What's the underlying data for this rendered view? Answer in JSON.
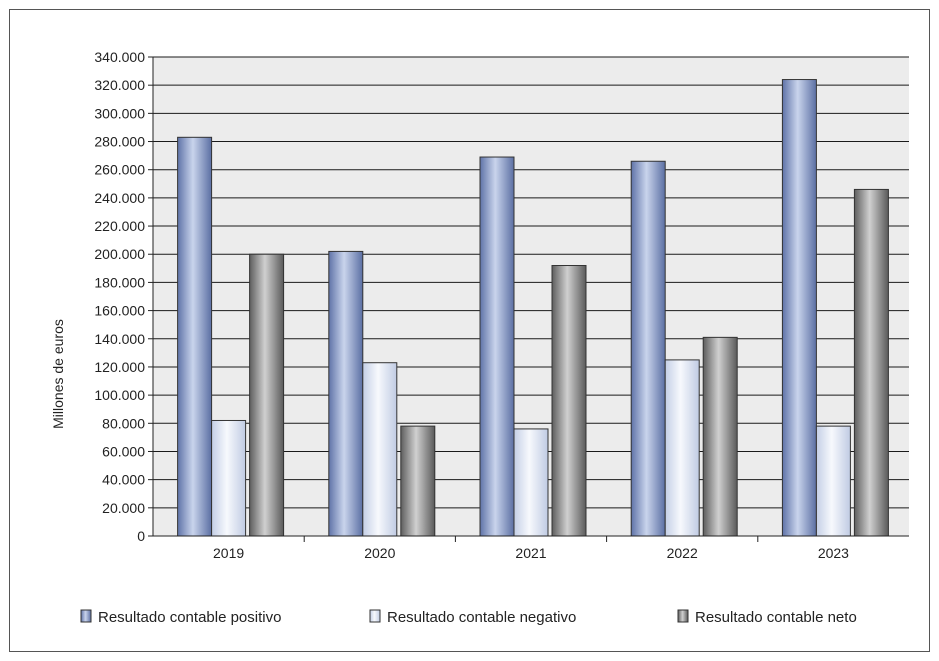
{
  "chart_data": {
    "type": "bar",
    "categories": [
      "2019",
      "2020",
      "2021",
      "2022",
      "2023"
    ],
    "series": [
      {
        "name": "Resultado contable positivo",
        "values": [
          283000,
          202000,
          269000,
          266000,
          324000
        ]
      },
      {
        "name": "Resultado contable negativo",
        "values": [
          82000,
          123000,
          76000,
          125000,
          78000
        ]
      },
      {
        "name": "Resultado contable neto",
        "values": [
          200000,
          78000,
          192000,
          141000,
          246000
        ]
      }
    ],
    "title": "",
    "xlabel": "",
    "ylabel": "Millones de euros",
    "ylim": [
      0,
      340000
    ],
    "yticks": [
      "0",
      "20.000",
      "40.000",
      "60.000",
      "80.000",
      "100.000",
      "120.000",
      "140.000",
      "160.000",
      "180.000",
      "200.000",
      "220.000",
      "240.000",
      "260.000",
      "280.000",
      "300.000",
      "320.000",
      "340.000"
    ],
    "grid": true,
    "legend_position": "bottom",
    "colors": {
      "positivo": "#7f93c2",
      "negativo": "#dfe6f4",
      "neto": "#8a8a8a",
      "plot_background": "#ececec",
      "gridline": "#1a1a1a"
    }
  }
}
